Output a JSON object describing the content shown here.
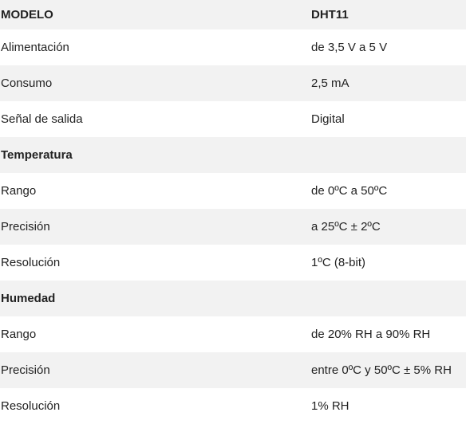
{
  "table": {
    "header": {
      "label": "MODELO",
      "value": "DHT11"
    },
    "rows": [
      {
        "label": "Alimentación",
        "value": "de 3,5 V a 5 V"
      },
      {
        "label": "Consumo",
        "value": "2,5 mA"
      },
      {
        "label": "Señal de salida",
        "value": "Digital"
      },
      {
        "label": "Temperatura",
        "value": ""
      },
      {
        "label": "Rango",
        "value": "de 0ºC a 50ºC"
      },
      {
        "label": "Precisión",
        "value": "a 25ºC ± 2ºC"
      },
      {
        "label": "Resolución",
        "value": "1ºC (8-bit)"
      },
      {
        "label": "Humedad",
        "value": ""
      },
      {
        "label": "Rango",
        "value": "de 20% RH a 90% RH"
      },
      {
        "label": "Precisión",
        "value": "entre 0ºC y 50ºC ± 5% RH"
      },
      {
        "label": "Resolución",
        "value": "1% RH"
      }
    ]
  },
  "colors": {
    "row_alt": "#f2f2f2",
    "row_base": "#ffffff",
    "text": "#222222"
  }
}
